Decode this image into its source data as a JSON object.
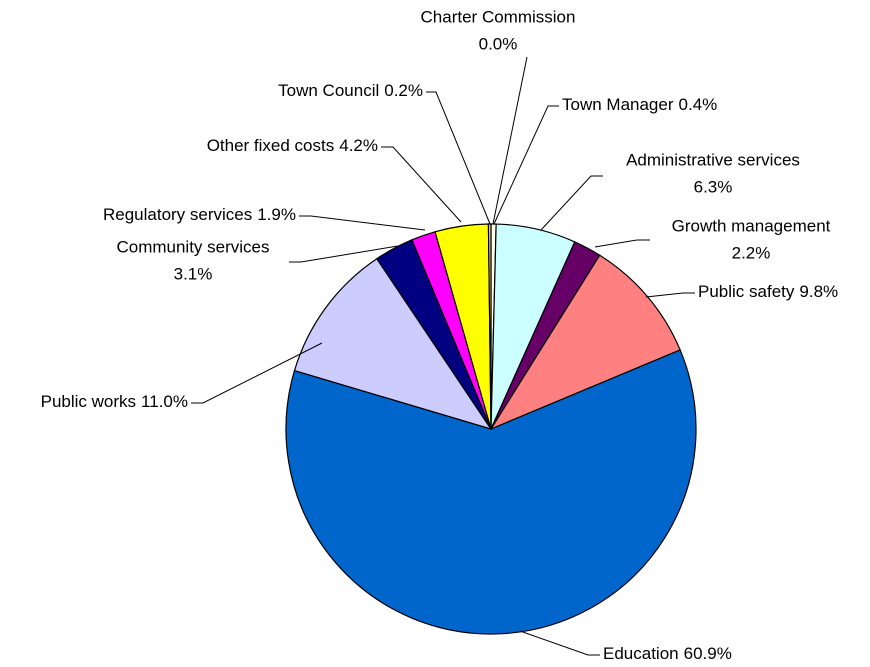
{
  "chart_data": {
    "type": "pie",
    "categories": [
      "Charter Commission",
      "Town Manager",
      "Administrative services",
      "Growth management",
      "Public safety",
      "Education",
      "Public works",
      "Community services",
      "Regulatory services",
      "Other fixed costs",
      "Town Council"
    ],
    "values": [
      0.0,
      0.4,
      6.3,
      2.2,
      9.8,
      60.9,
      11.0,
      3.1,
      1.9,
      4.2,
      0.2
    ],
    "value_labels": [
      "0.0%",
      "0.4%",
      "6.3%",
      "2.2%",
      "9.8%",
      "60.9%",
      "11.0%",
      "3.1%",
      "1.9%",
      "4.2%",
      "0.2%"
    ],
    "colors": [
      "#FFFFCC",
      "#FFFFF0",
      "#CCFFFF",
      "#660066",
      "#FF8080",
      "#0066CC",
      "#CCCCFF",
      "#000080",
      "#FF00FF",
      "#FFFF00",
      "#FFCC99"
    ]
  }
}
